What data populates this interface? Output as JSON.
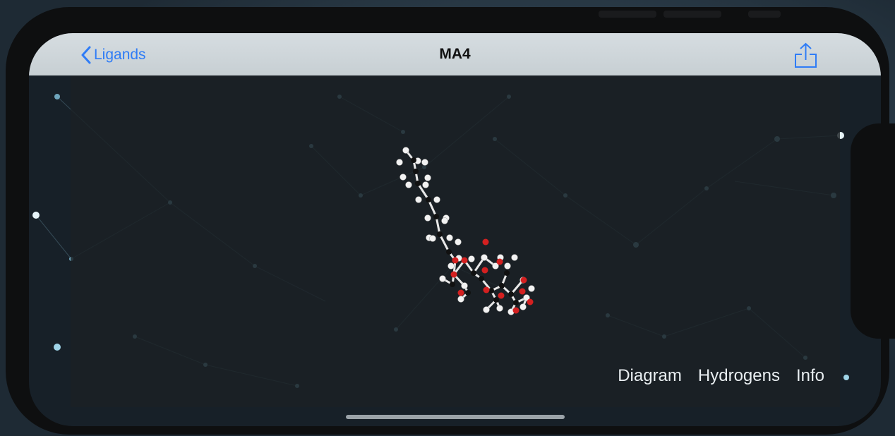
{
  "nav": {
    "back_label": "Ligands",
    "title": "MA4"
  },
  "toolbar": {
    "diagram_label": "Diagram",
    "hydrogens_label": "Hydrogens",
    "info_label": "Info"
  },
  "colors": {
    "accent": "#2f7cf6",
    "navbar": "#cfd6da",
    "carbon": "#111111",
    "hydrogen": "#f2f2f2",
    "oxygen": "#d42020",
    "bond": "#e8e8e8"
  },
  "icons": {
    "back": "chevron-left-icon",
    "share": "share-icon"
  }
}
